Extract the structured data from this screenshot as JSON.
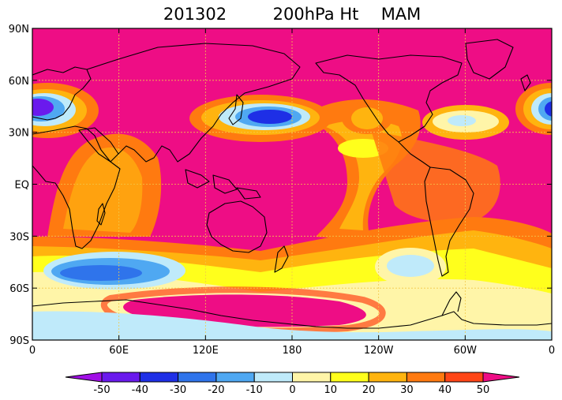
{
  "title": {
    "date": "201302",
    "variable": "200hPa Ht",
    "season": "MAM"
  },
  "map": {
    "projection": "cylindrical equidistant",
    "lon_range": [
      0,
      360
    ],
    "lat_range": [
      -90,
      90
    ],
    "grid": true,
    "colors": {
      "background": "#ee0d85",
      "land_outline": "#000000",
      "grid_line": "#f2c84a"
    },
    "lat_ticks": [
      {
        "value": 90,
        "label": "90N"
      },
      {
        "value": 60,
        "label": "60N"
      },
      {
        "value": 30,
        "label": "30N"
      },
      {
        "value": 0,
        "label": "EQ"
      },
      {
        "value": -30,
        "label": "30S"
      },
      {
        "value": -60,
        "label": "60S"
      },
      {
        "value": -90,
        "label": "90S"
      }
    ],
    "lon_ticks": [
      {
        "value": 0,
        "label": "0"
      },
      {
        "value": 60,
        "label": "60E"
      },
      {
        "value": 120,
        "label": "120E"
      },
      {
        "value": 180,
        "label": "180"
      },
      {
        "value": 240,
        "label": "120W"
      },
      {
        "value": 300,
        "label": "60W"
      },
      {
        "value": 360,
        "label": "0"
      }
    ]
  },
  "colorbar": {
    "levels": [
      "-50",
      "-40",
      "-30",
      "-20",
      "-10",
      "0",
      "10",
      "20",
      "30",
      "40",
      "50"
    ],
    "colors": [
      "#a10fe6",
      "#6a1aed",
      "#1e2fe6",
      "#2f74eb",
      "#4fa8f2",
      "#bfeafa",
      "#fff5a8",
      "#ffff1c",
      "#ffb40f",
      "#ff7a10",
      "#ff4617",
      "#ee0d85"
    ]
  }
}
